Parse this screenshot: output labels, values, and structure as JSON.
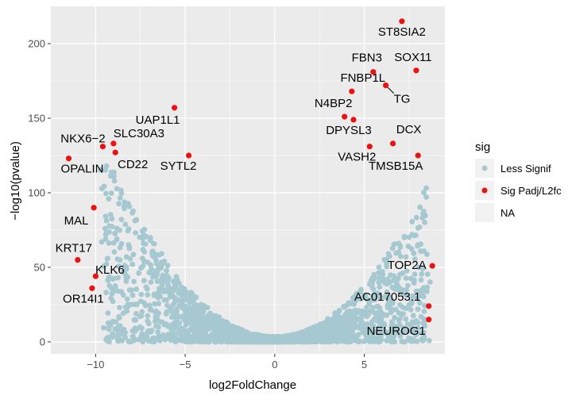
{
  "chart_data": {
    "type": "scatter",
    "title": "",
    "xlabel": "log2FoldChange",
    "ylabel": "−log10(pvalue)",
    "xlim": [
      -12.5,
      9.5
    ],
    "ylim": [
      -8,
      225
    ],
    "x_ticks": [
      -10,
      -5,
      0,
      5
    ],
    "x_tick_labels": [
      "−10",
      "−5",
      "0",
      "5"
    ],
    "y_ticks": [
      0,
      50,
      100,
      150,
      200
    ],
    "y_tick_labels": [
      "0",
      "50",
      "100",
      "150",
      "200"
    ],
    "grid": true,
    "legend": {
      "placement": "right",
      "title": "sig",
      "entries": [
        {
          "label": "Less Signif",
          "color": "#a6c8d0"
        },
        {
          "label": "Sig Padj/L2fc",
          "color": "#ee1111"
        },
        {
          "label": "NA",
          "color": ""
        }
      ]
    },
    "colors": {
      "less_signif": "#a6c8d0",
      "sig": "#ee1111",
      "panel_background": "#ebebeb",
      "gridline": "#ffffff"
    },
    "series": [
      {
        "name": "Sig Padj/L2fc",
        "points": [
          {
            "label": "ST8SIA2",
            "x": 7.1,
            "y": 215
          },
          {
            "label": "SOX11",
            "x": 7.9,
            "y": 182
          },
          {
            "label": "FBN3",
            "x": 5.5,
            "y": 181
          },
          {
            "label": "FNBP1L",
            "x": 4.3,
            "y": 168
          },
          {
            "label": "TG",
            "x": 6.2,
            "y": 172
          },
          {
            "label": "N4BP2",
            "x": 3.9,
            "y": 151
          },
          {
            "label": "DPYSL3",
            "x": 4.4,
            "y": 149
          },
          {
            "label": "DCX",
            "x": 6.6,
            "y": 133
          },
          {
            "label": "VASH2",
            "x": 5.3,
            "y": 131
          },
          {
            "label": "TMSB15A",
            "x": 8.0,
            "y": 125
          },
          {
            "label": "UAP1L1",
            "x": -5.6,
            "y": 157
          },
          {
            "label": "NKX6−2",
            "x": -9.6,
            "y": 131
          },
          {
            "label": "SLC30A3",
            "x": -9.0,
            "y": 133
          },
          {
            "label": "CD22",
            "x": -8.9,
            "y": 127
          },
          {
            "label": "OPALIN",
            "x": -11.5,
            "y": 123
          },
          {
            "label": "SYTL2",
            "x": -4.8,
            "y": 125
          },
          {
            "label": "MAL",
            "x": -10.1,
            "y": 90
          },
          {
            "label": "KRT17",
            "x": -11.0,
            "y": 55
          },
          {
            "label": "KLK6",
            "x": -10.0,
            "y": 44
          },
          {
            "label": "OR14I1",
            "x": -10.2,
            "y": 36
          },
          {
            "label": "TOP2A",
            "x": 8.8,
            "y": 51
          },
          {
            "label": "AC017053.1",
            "x": 8.6,
            "y": 24
          },
          {
            "label": "NEUROG1",
            "x": 8.6,
            "y": 15
          }
        ]
      }
    ]
  }
}
